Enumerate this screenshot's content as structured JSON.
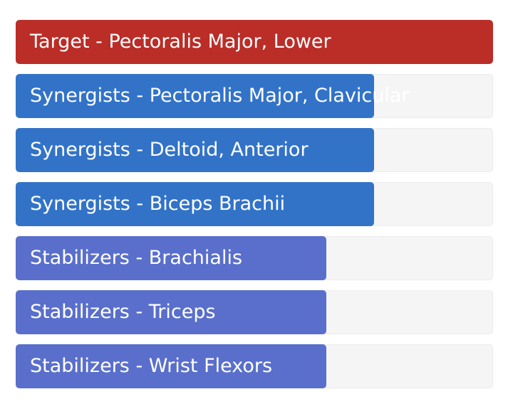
{
  "muscles": [
    {
      "label": "Target - Pectoralis Major, Lower",
      "group": "target",
      "level": 1.0,
      "color": "#bb2d27"
    },
    {
      "label": "Synergists - Pectoralis Major, Clavicular",
      "group": "synergist",
      "level": 0.75,
      "color": "#3273c8"
    },
    {
      "label": "Synergists - Deltoid, Anterior",
      "group": "synergist",
      "level": 0.75,
      "color": "#3273c8"
    },
    {
      "label": "Synergists - Biceps Brachii",
      "group": "synergist",
      "level": 0.75,
      "color": "#3273c8"
    },
    {
      "label": "Stabilizers - Brachialis",
      "group": "stabilizer",
      "level": 0.65,
      "color": "#5a6fcb"
    },
    {
      "label": "Stabilizers - Triceps",
      "group": "stabilizer",
      "level": 0.65,
      "color": "#5a6fcb"
    },
    {
      "label": "Stabilizers - Wrist Flexors",
      "group": "stabilizer",
      "level": 0.65,
      "color": "#5a6fcb"
    }
  ]
}
